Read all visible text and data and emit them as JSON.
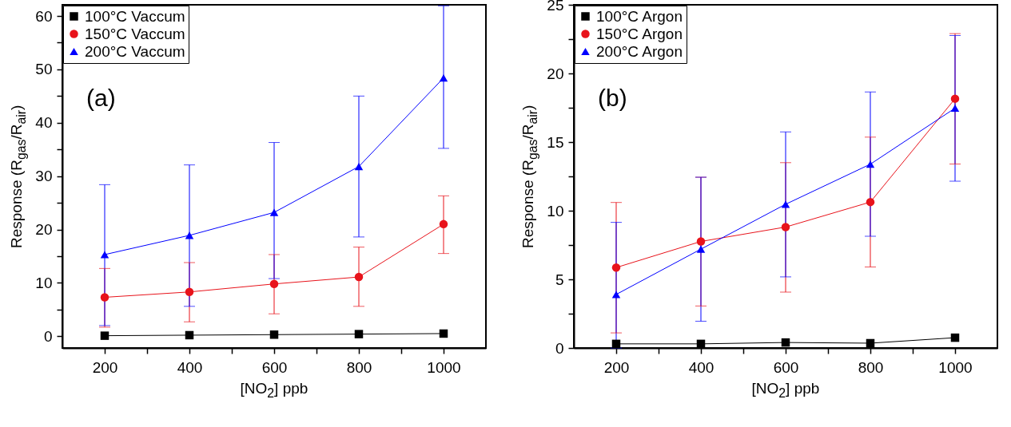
{
  "chart_data": [
    {
      "type": "line",
      "xlabel": "[NO$_{2}$] ppb",
      "ylabel": "Response (R$_{gas}$/R$_{air}$)",
      "annotations": [
        "(a)"
      ],
      "legend": "top left",
      "grid": false,
      "xlim": [
        100,
        1100
      ],
      "xticks": [
        200,
        {
          "value": 300,
          "label": null
        },
        400,
        {
          "value": 500,
          "label": null
        },
        600,
        {
          "value": 700,
          "label": null
        },
        800,
        {
          "value": 900,
          "label": null
        },
        1000
      ],
      "ylim": [
        -2.2,
        62.1
      ],
      "yticks": [
        0,
        {
          "value": 5,
          "label": null
        },
        10,
        {
          "value": 15,
          "label": null
        },
        20,
        {
          "value": 25,
          "label": null
        },
        30,
        {
          "value": 35,
          "label": null
        },
        40,
        {
          "value": 45,
          "label": null
        },
        50,
        {
          "value": 55,
          "label": null
        },
        60
      ],
      "x": [
        200,
        400,
        600,
        800,
        1000
      ],
      "series": [
        {
          "name": "100°C Vaccum",
          "color": "#000000",
          "marker": "square",
          "values": [
            0.1,
            0.2,
            0.3,
            0.4,
            0.5
          ]
        },
        {
          "name": "150°C Vaccum",
          "color": "#e8131b",
          "marker": "circle",
          "values": [
            7.3,
            8.3,
            9.8,
            11.1,
            21.0
          ],
          "errors": [
            [
              1.7,
              12.7
            ],
            [
              2.7,
              13.8
            ],
            [
              4.2,
              15.3
            ],
            [
              5.6,
              16.7
            ],
            [
              15.5,
              26.3
            ]
          ]
        },
        {
          "name": "200°C Vaccum",
          "color": "#0000ff",
          "marker": "triangle",
          "values": [
            15.3,
            18.9,
            23.2,
            31.8,
            48.4
          ],
          "errors": [
            [
              2.0,
              28.4
            ],
            [
              5.6,
              32.1
            ],
            [
              10.8,
              36.3
            ],
            [
              18.6,
              45.0
            ],
            [
              35.2,
              61.9
            ]
          ]
        }
      ]
    },
    {
      "type": "line",
      "xlabel": "[NO$_{2}$] ppb",
      "ylabel": "Response (R$_{gas}$/R$_{air}$)",
      "annotations": [
        "(b)"
      ],
      "legend": "top left",
      "grid": false,
      "xlim": [
        100,
        1100
      ],
      "xticks": [
        200,
        {
          "value": 300,
          "label": null
        },
        400,
        {
          "value": 500,
          "label": null
        },
        600,
        {
          "value": 700,
          "label": null
        },
        800,
        {
          "value": 900,
          "label": null
        },
        1000
      ],
      "ylim": [
        0,
        25
      ],
      "yticks": [
        0,
        {
          "value": 2.5,
          "label": null
        },
        5,
        {
          "value": 7.5,
          "label": null
        },
        10,
        {
          "value": 12.5,
          "label": null
        },
        15,
        {
          "value": 17.5,
          "label": null
        },
        20,
        {
          "value": 22.5,
          "label": null
        },
        25
      ],
      "x": [
        200,
        400,
        600,
        800,
        1000
      ],
      "series": [
        {
          "name": "100°C Argon",
          "color": "#000000",
          "marker": "square",
          "values": [
            0.3,
            0.3,
            0.4,
            0.35,
            0.75
          ]
        },
        {
          "name": "150°C Argon",
          "color": "#e8131b",
          "marker": "circle",
          "values": [
            5.86,
            7.76,
            8.81,
            10.63,
            18.16
          ],
          "errors": [
            [
              1.1,
              10.6
            ],
            [
              3.06,
              12.44
            ],
            [
              4.07,
              13.5
            ],
            [
              5.9,
              15.36
            ],
            [
              13.4,
              22.9
            ]
          ]
        },
        {
          "name": "200°C Argon",
          "color": "#0000ff",
          "marker": "triangle",
          "values": [
            3.9,
            7.2,
            10.47,
            13.39,
            17.47
          ],
          "errors": [
            [
              0,
              9.15
            ],
            [
              1.95,
              12.44
            ],
            [
              5.18,
              15.74
            ],
            [
              8.14,
              18.65
            ],
            [
              12.15,
              22.76
            ]
          ]
        }
      ]
    }
  ]
}
